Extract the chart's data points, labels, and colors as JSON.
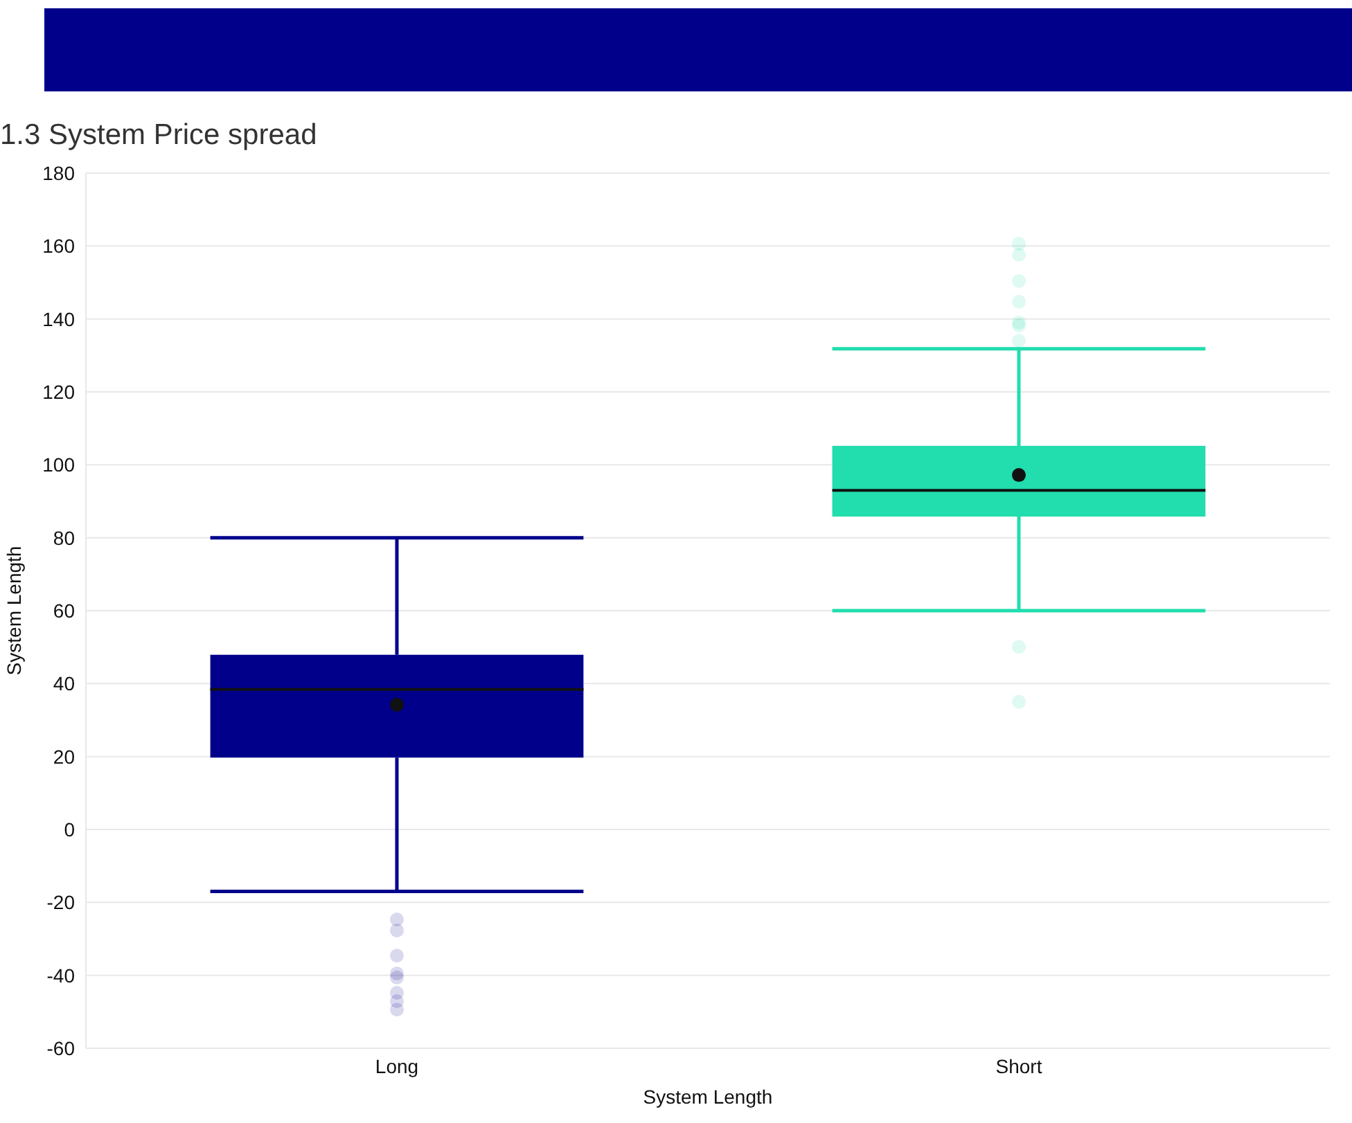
{
  "chart_data": {
    "type": "box",
    "title": "1.3 System Price spread",
    "xlabel": "System Length",
    "ylabel": "System Length",
    "categories": [
      "Long",
      "Short"
    ],
    "colors": [
      "#00008b",
      "#22ddad"
    ],
    "boxes": [
      {
        "low": -17,
        "q1": 19.7,
        "median": 38.4,
        "q3": 47.9,
        "high": 80,
        "mean": 34.2,
        "outliers": [
          -24.7,
          -27.7,
          -34.6,
          -39.5,
          -40.6,
          -44.8,
          -47.1,
          -49.4
        ]
      },
      {
        "low": 60,
        "q1": 85.8,
        "median": 93,
        "q3": 105.2,
        "high": 131.8,
        "mean": 97.2,
        "outliers": [
          160.6,
          157.6,
          150.4,
          144.7,
          139,
          138.2,
          134,
          50.1,
          35
        ]
      }
    ],
    "ylim": [
      -60,
      180
    ],
    "yticks": [
      -60,
      -40,
      -20,
      0,
      20,
      40,
      60,
      80,
      100,
      120,
      140,
      160,
      180
    ],
    "grid": "y"
  }
}
